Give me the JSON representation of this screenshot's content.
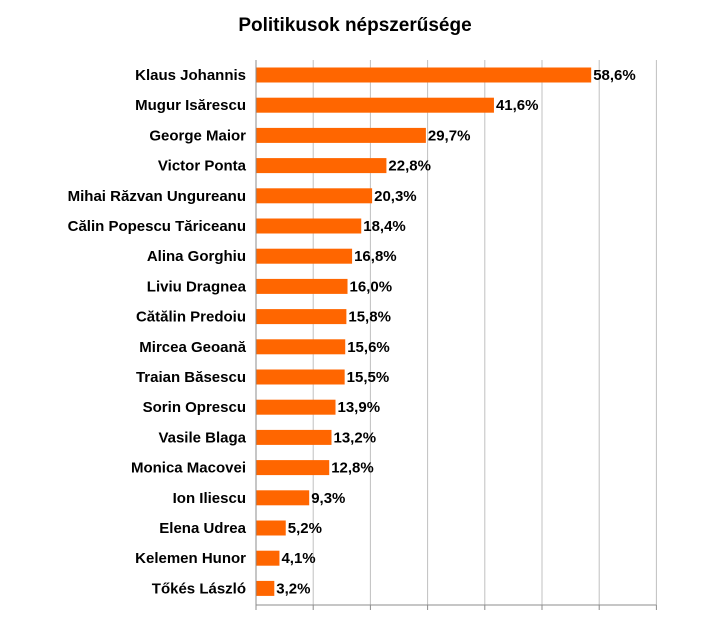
{
  "chart_data": {
    "type": "bar",
    "orientation": "horizontal",
    "title": "Politikusok népszerűsége",
    "categories": [
      "Klaus Johannis",
      "Mugur Isărescu",
      "George Maior",
      "Victor Ponta",
      "Mihai Răzvan Ungureanu",
      "Călin Popescu Tăriceanu",
      "Alina Gorghiu",
      "Liviu Dragnea",
      "Cătălin Predoiu",
      "Mircea Geoană",
      "Traian Băsescu",
      "Sorin Oprescu",
      "Vasile Blaga",
      "Monica Macovei",
      "Ion Iliescu",
      "Elena Udrea",
      "Kelemen Hunor",
      "Tőkés László"
    ],
    "values": [
      58.6,
      41.6,
      29.7,
      22.8,
      20.3,
      18.4,
      16.8,
      16.0,
      15.8,
      15.6,
      15.5,
      13.9,
      13.2,
      12.8,
      9.3,
      5.2,
      4.1,
      3.2
    ],
    "value_labels": [
      "58,6%",
      "41,6%",
      "29,7%",
      "22,8%",
      "20,3%",
      "18,4%",
      "16,8%",
      "16,0%",
      "15,8%",
      "15,6%",
      "15,5%",
      "13,9%",
      "13,2%",
      "12,8%",
      "9,3%",
      "5,2%",
      "4,1%",
      "3,2%"
    ],
    "xlim": [
      0,
      70
    ],
    "grid": true,
    "legend": "none",
    "xlabel": "",
    "ylabel": "",
    "colors": {
      "bar": "#ff6600",
      "grid": "#c0c0c0",
      "axis": "#8c8c8c",
      "text": "#000000"
    }
  }
}
